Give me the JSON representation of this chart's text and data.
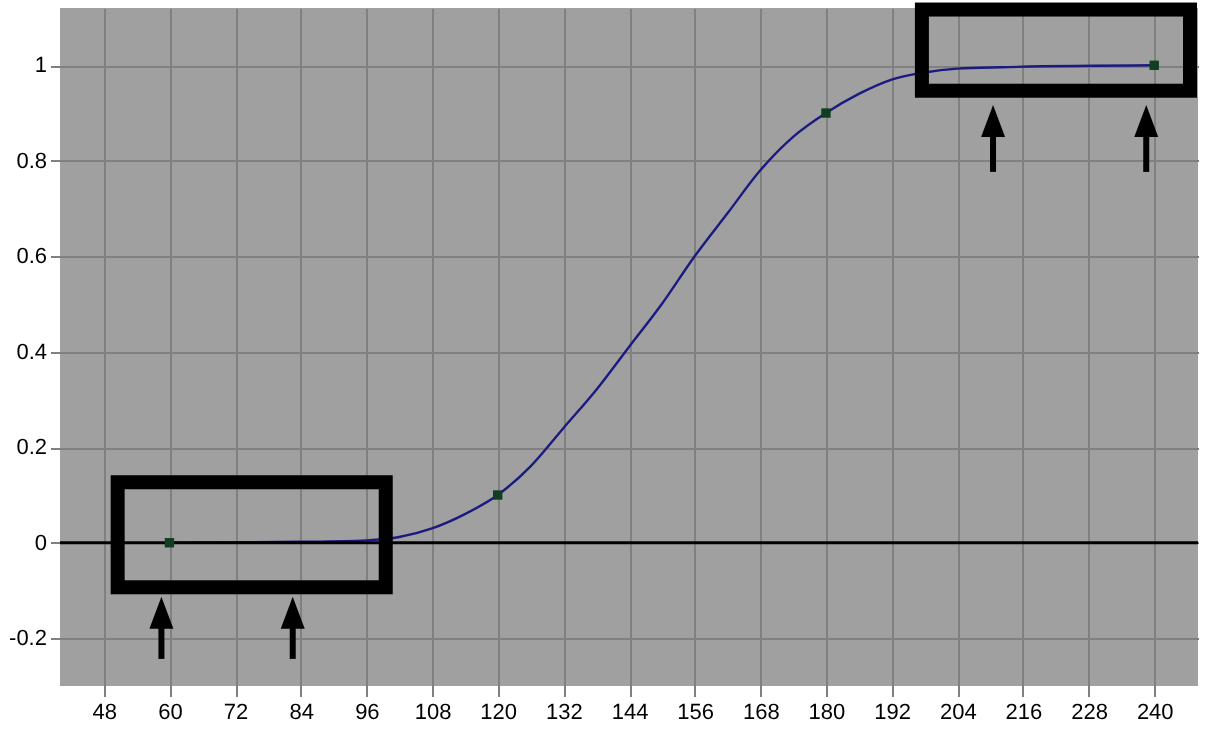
{
  "chart_data": {
    "type": "line",
    "xlim": [
      40,
      248
    ],
    "xticks": [
      48,
      60,
      72,
      84,
      96,
      108,
      120,
      132,
      144,
      156,
      168,
      180,
      192,
      204,
      216,
      228,
      240
    ],
    "ylim": [
      -0.3,
      1.12
    ],
    "yticks": [
      -0.2,
      0,
      0.2,
      0.4,
      0.6,
      0.8,
      1
    ],
    "grid": true,
    "ref_lines": [
      {
        "axis": "y",
        "value": 0,
        "color": "#000000"
      }
    ],
    "series": [
      {
        "color": "#1a1a80",
        "marker": "none",
        "x": [
          60,
          84,
          96,
          102,
          108,
          114,
          120,
          126,
          132,
          138,
          144,
          150,
          156,
          162,
          168,
          174,
          180,
          186,
          192,
          198,
          204,
          212,
          240
        ],
        "values": [
          0,
          0.002,
          0.005,
          0.012,
          0.03,
          0.06,
          0.1,
          0.16,
          0.24,
          0.32,
          0.41,
          0.5,
          0.6,
          0.69,
          0.78,
          0.85,
          0.9,
          0.94,
          0.97,
          0.985,
          0.993,
          0.996,
          1
        ]
      },
      {
        "type": "scatter",
        "color": "#0f3f20",
        "marker": "square",
        "x": [
          60,
          120,
          180,
          240
        ],
        "values": [
          0,
          0.1,
          0.9,
          1
        ]
      }
    ]
  }
}
